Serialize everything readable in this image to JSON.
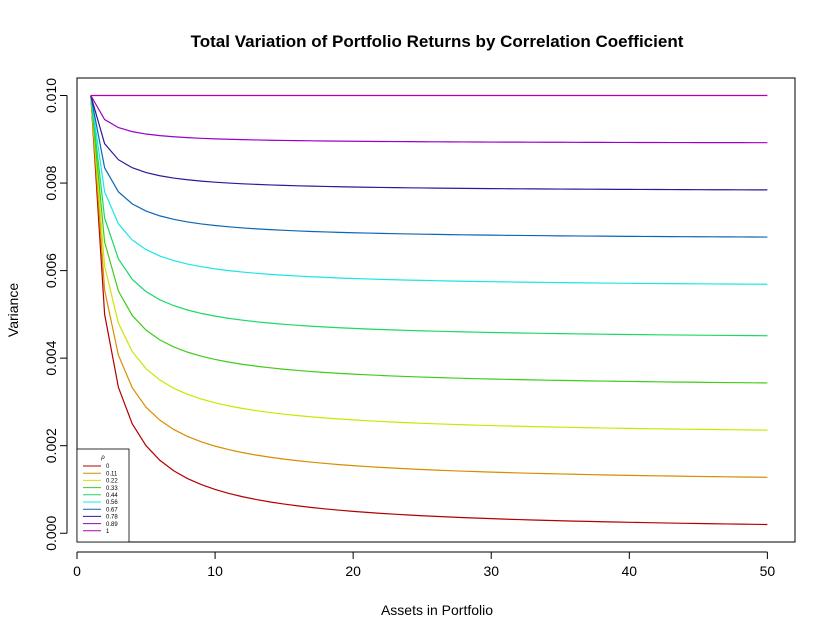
{
  "chart_data": {
    "type": "line",
    "title": "Total Variation of Portfolio Returns by Correlation Coefficient",
    "xlabel": "Assets in Portfolio",
    "ylabel": "Variance",
    "xlim": [
      0,
      52
    ],
    "ylim": [
      -0.0002,
      0.0104
    ],
    "x_ticks": [
      0,
      10,
      20,
      30,
      40,
      50
    ],
    "x_tick_labels": [
      "0",
      "10",
      "20",
      "30",
      "40",
      "50"
    ],
    "y_ticks": [
      0,
      0.002,
      0.004,
      0.006,
      0.008,
      0.01
    ],
    "y_tick_labels": [
      "0.000",
      "0.002",
      "0.004",
      "0.006",
      "0.008",
      "0.010"
    ],
    "grid": false,
    "legend": {
      "title": "ρ",
      "position": "bottom-left",
      "entries": [
        "0",
        "0.11",
        "0.22",
        "0.33",
        "0.44",
        "0.56",
        "0.67",
        "0.78",
        "0.89",
        "1"
      ]
    },
    "variance_single_asset": 0.01,
    "x": [
      1,
      2,
      3,
      4,
      5,
      6,
      7,
      8,
      9,
      10,
      11,
      12,
      13,
      14,
      15,
      16,
      17,
      18,
      19,
      20,
      21,
      22,
      23,
      24,
      25,
      26,
      27,
      28,
      29,
      30,
      31,
      32,
      33,
      34,
      35,
      36,
      37,
      38,
      39,
      40,
      41,
      42,
      43,
      44,
      45,
      46,
      47,
      48,
      49,
      50
    ],
    "series": [
      {
        "name": "0",
        "rho": 0,
        "color": "#b30000"
      },
      {
        "name": "0.11",
        "rho": 0.11,
        "color": "#d98c00"
      },
      {
        "name": "0.22",
        "rho": 0.22,
        "color": "#cce600"
      },
      {
        "name": "0.33",
        "rho": 0.33,
        "color": "#40cc1a"
      },
      {
        "name": "0.44",
        "rho": 0.44,
        "color": "#1ad966"
      },
      {
        "name": "0.56",
        "rho": 0.56,
        "color": "#1ae6e6"
      },
      {
        "name": "0.67",
        "rho": 0.67,
        "color": "#0d66b3"
      },
      {
        "name": "0.78",
        "rho": 0.78,
        "color": "#2a1a99"
      },
      {
        "name": "0.89",
        "rho": 0.89,
        "color": "#9900cc"
      },
      {
        "name": "1",
        "rho": 1,
        "color": "#b300b3"
      }
    ]
  }
}
